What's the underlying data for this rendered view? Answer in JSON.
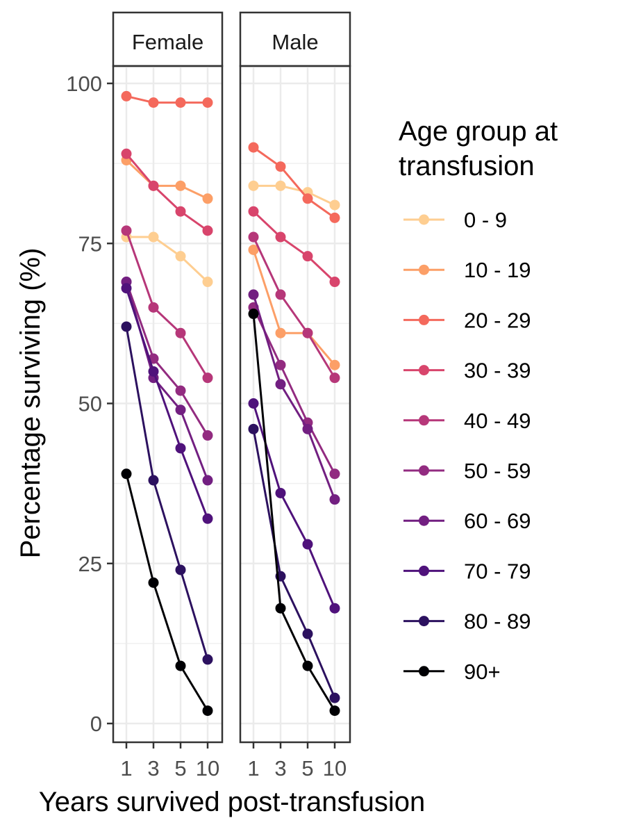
{
  "chart_data": {
    "type": "line",
    "xlabel": "Years survived post-transfusion",
    "ylabel": "Percentage surviving (%)",
    "x": [
      1,
      3,
      5,
      10
    ],
    "x_tick_labels": [
      "1",
      "3",
      "5",
      "10"
    ],
    "x_scale": "categorical",
    "ylim": [
      0,
      100
    ],
    "y_ticks": [
      0,
      25,
      50,
      75,
      100
    ],
    "grid": true,
    "legend": {
      "title": "Age group at transfusion",
      "title_lines": [
        "Age group at",
        "transfusion"
      ],
      "placement": "right"
    },
    "panels": [
      {
        "name": "Female",
        "series": [
          {
            "name": "0 - 9",
            "values": [
              76,
              76,
              73,
              69
            ]
          },
          {
            "name": "10 - 19",
            "values": [
              88,
              84,
              84,
              82
            ]
          },
          {
            "name": "20 - 29",
            "values": [
              98,
              97,
              97,
              97
            ]
          },
          {
            "name": "30 - 39",
            "values": [
              89,
              84,
              80,
              77
            ]
          },
          {
            "name": "40 - 49",
            "values": [
              77,
              65,
              61,
              54
            ]
          },
          {
            "name": "50 - 59",
            "values": [
              69,
              57,
              52,
              45
            ]
          },
          {
            "name": "60 - 69",
            "values": [
              69,
              54,
              49,
              38
            ]
          },
          {
            "name": "70 - 79",
            "values": [
              68,
              55,
              43,
              32
            ]
          },
          {
            "name": "80 - 89",
            "values": [
              62,
              38,
              24,
              10
            ]
          },
          {
            "name": "90+",
            "values": [
              39,
              22,
              9,
              2
            ]
          }
        ]
      },
      {
        "name": "Male",
        "series": [
          {
            "name": "0 - 9",
            "values": [
              84,
              84,
              83,
              81
            ]
          },
          {
            "name": "10 - 19",
            "values": [
              74,
              61,
              61,
              56
            ]
          },
          {
            "name": "20 - 29",
            "values": [
              90,
              87,
              82,
              79
            ]
          },
          {
            "name": "30 - 39",
            "values": [
              80,
              76,
              73,
              69
            ]
          },
          {
            "name": "40 - 49",
            "values": [
              76,
              67,
              61,
              54
            ]
          },
          {
            "name": "50 - 59",
            "values": [
              65,
              56,
              47,
              39
            ]
          },
          {
            "name": "60 - 69",
            "values": [
              67,
              53,
              46,
              35
            ]
          },
          {
            "name": "70 - 79",
            "values": [
              50,
              36,
              28,
              18
            ]
          },
          {
            "name": "80 - 89",
            "values": [
              46,
              23,
              14,
              4
            ]
          },
          {
            "name": "90+",
            "values": [
              64,
              18,
              9,
              2
            ]
          }
        ]
      }
    ],
    "colors": {
      "0 - 9": "#FECE91",
      "10 - 19": "#FC9F67",
      "20 - 29": "#F4695C",
      "30 - 39": "#D8456C",
      "40 - 49": "#B63779",
      "50 - 59": "#922B80",
      "60 - 69": "#721F81",
      "70 - 79": "#4F127B",
      "80 - 89": "#2C115F",
      "90+": "#000004"
    }
  }
}
